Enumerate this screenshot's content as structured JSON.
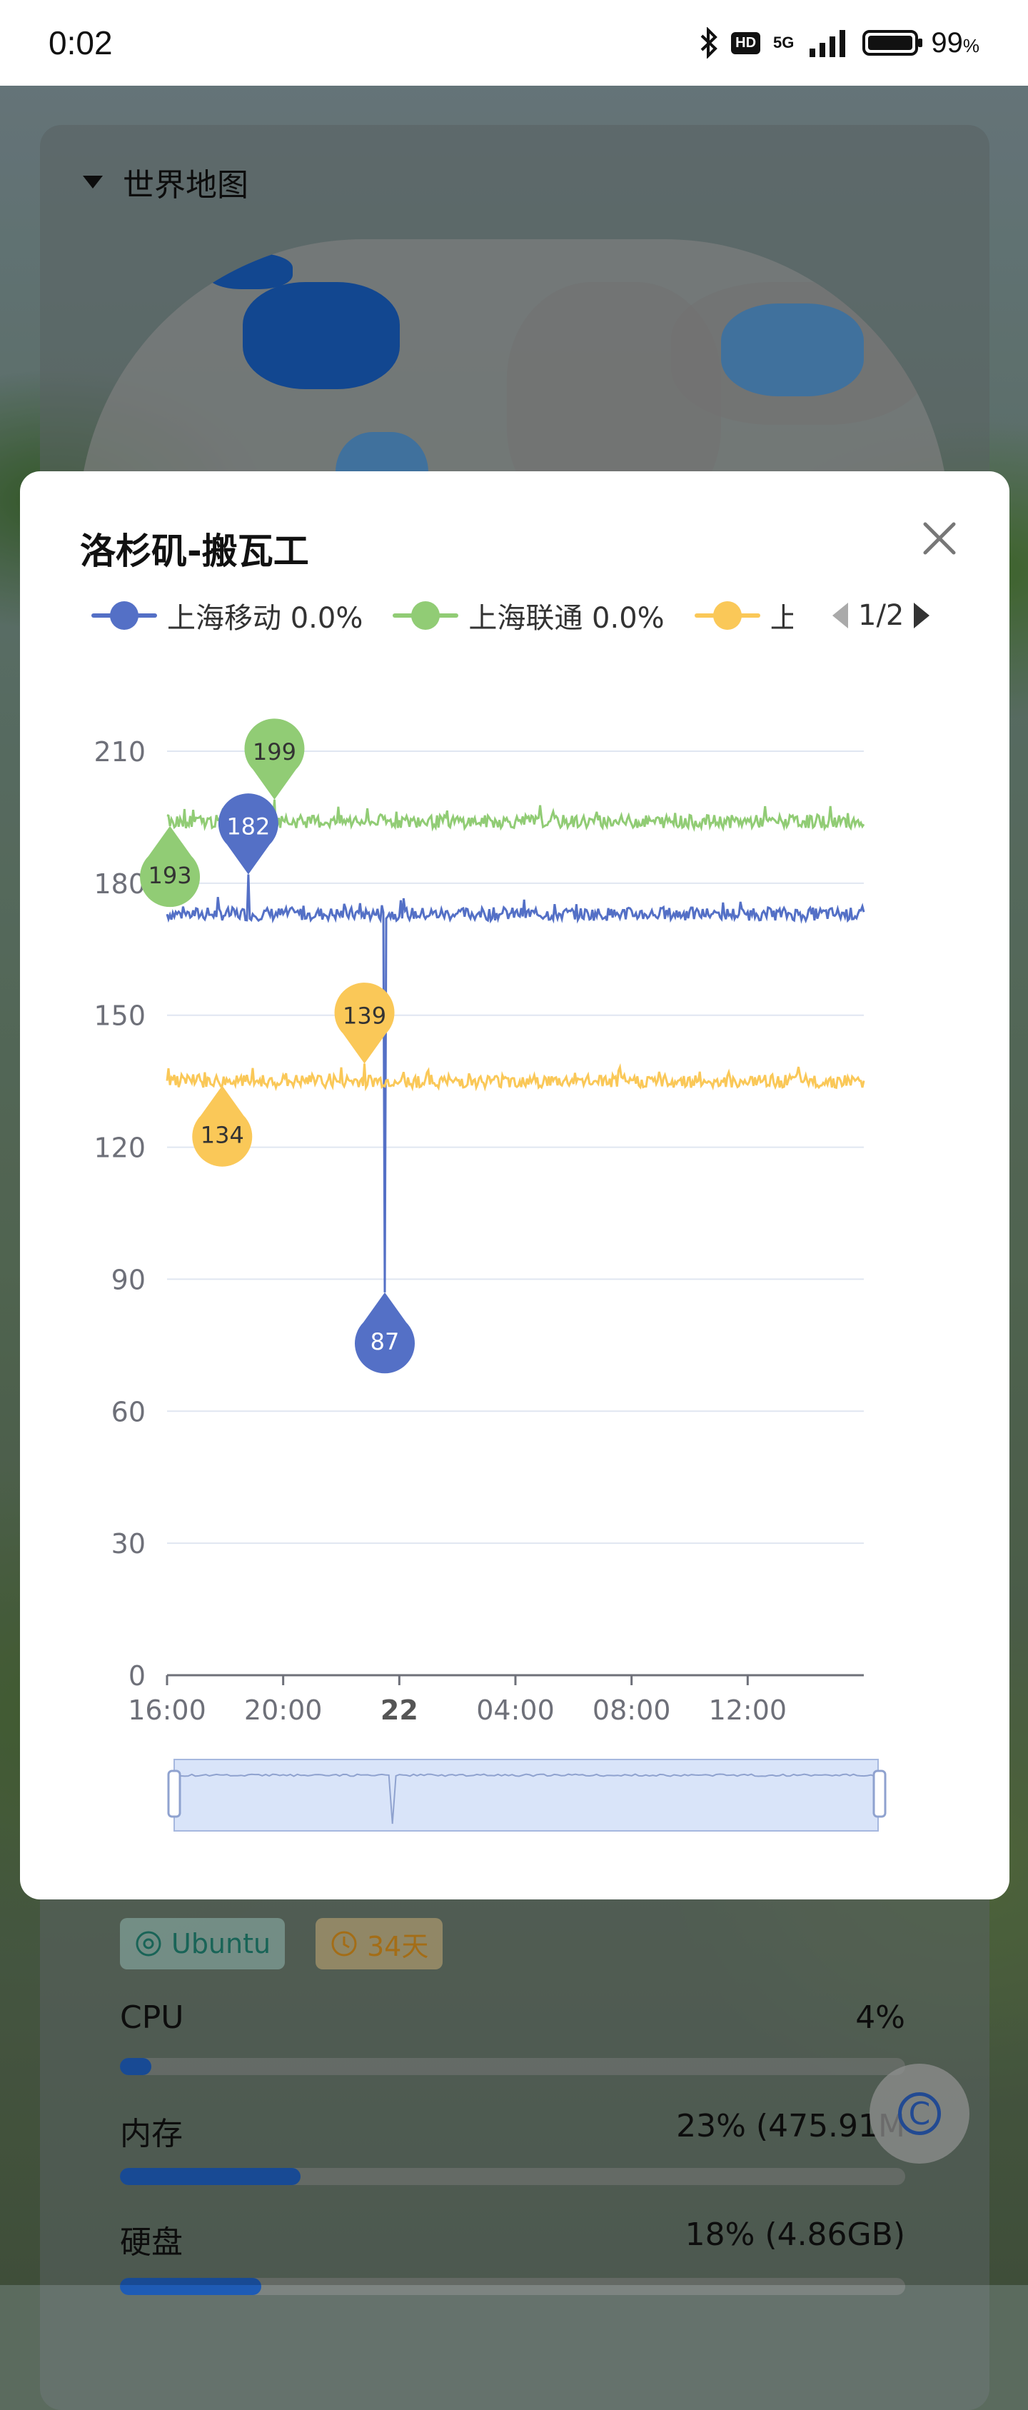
{
  "status_bar": {
    "time": "0:02",
    "network": "5G",
    "hd_badge": "HD",
    "battery_percent": 99,
    "battery_text": "99",
    "battery_unit": "%"
  },
  "map_card": {
    "title": "世界地图"
  },
  "server_card": {
    "os_tag": "Ubuntu",
    "uptime_tag": "34天",
    "metrics": [
      {
        "label": "CPU",
        "value": "4%",
        "percent": 4
      },
      {
        "label": "内存",
        "value": "23% (475.91M",
        "percent": 23
      },
      {
        "label": "硬盘",
        "value": "18% (4.86GB)",
        "percent": 18
      }
    ]
  },
  "fab": {
    "icon": "copyright-icon",
    "glyph": "C"
  },
  "dialog": {
    "title": "洛杉矶-搬瓦工",
    "close_icon": "close-icon",
    "legend": [
      {
        "label": "上海移动 0.0%",
        "color": "#5470c6"
      },
      {
        "label": "上海联通 0.0%",
        "color": "#91cc75"
      },
      {
        "label": "上",
        "color": "#fac858"
      }
    ],
    "pager": {
      "text": "1/2"
    }
  },
  "chart_data": {
    "type": "line",
    "title": "",
    "y_ticks": [
      "0",
      "30",
      "60",
      "90",
      "120",
      "150",
      "180",
      "210"
    ],
    "ylim": [
      0,
      210
    ],
    "x_ticks": [
      "16:00",
      "20:00",
      "22",
      "04:00",
      "08:00",
      "12:00"
    ],
    "x_tick_hours": [
      0,
      4,
      8,
      12,
      16,
      20
    ],
    "x_range_hours": [
      0,
      24
    ],
    "series": [
      {
        "name": "上海移动",
        "color": "#5470c6",
        "baseline": 173,
        "min": {
          "x_hours": 7.5,
          "value": 87
        },
        "max": {
          "x_hours": 2.8,
          "value": 182
        }
      },
      {
        "name": "上海联通",
        "color": "#91cc75",
        "baseline": 194,
        "min": {
          "x_hours": 0.1,
          "value": 193
        },
        "max": {
          "x_hours": 3.7,
          "value": 199
        }
      },
      {
        "name": "上",
        "color": "#fac858",
        "baseline": 135,
        "min": {
          "x_hours": 1.9,
          "value": 134
        },
        "max": {
          "x_hours": 6.8,
          "value": 139
        }
      }
    ],
    "grid": true
  }
}
